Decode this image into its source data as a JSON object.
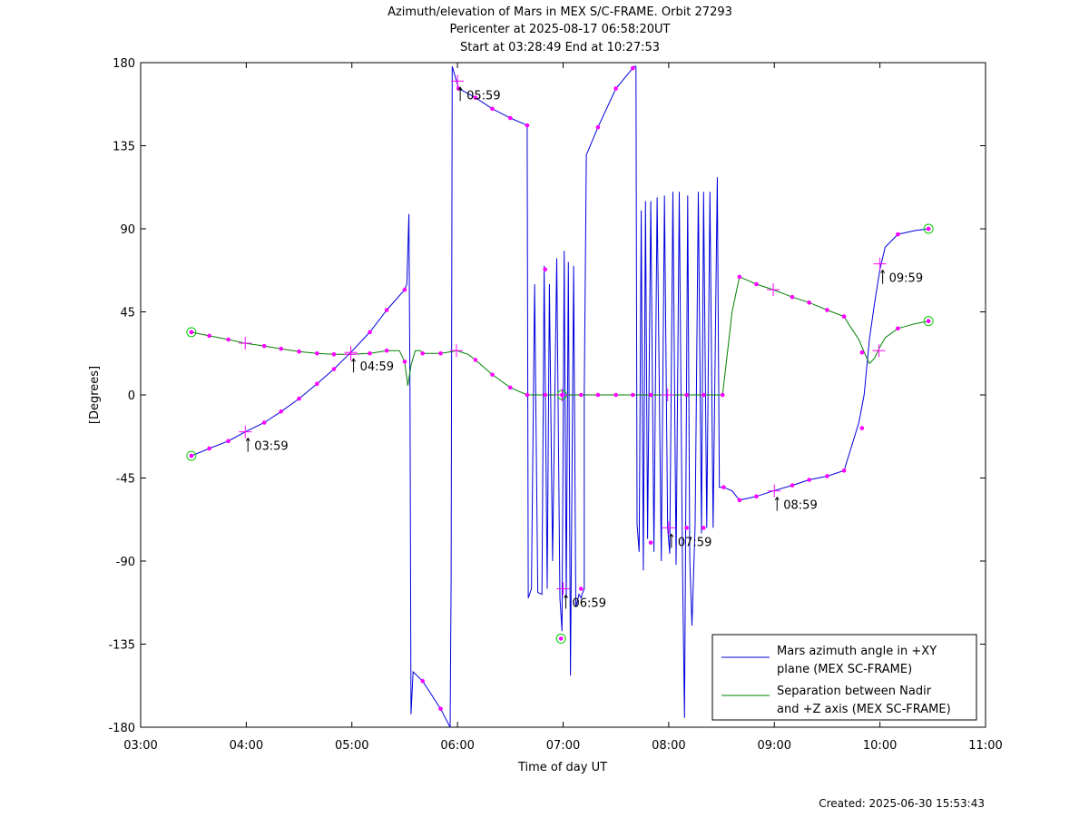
{
  "chart_data": {
    "type": "line",
    "title_lines": [
      "Azimuth/elevation of Mars in MEX S/C-FRAME.  Orbit 27293",
      "Pericenter at 2025-08-17 06:58:20UT",
      "Start at 03:28:49 End at 10:27:53"
    ],
    "xlabel": "Time of day UT",
    "ylabel": "[Degrees]",
    "footer": "Created: 2025-06-30 15:53:43",
    "xlim": [
      3.0,
      11.0
    ],
    "ylim": [
      -180,
      180
    ],
    "xticks": [
      3,
      4,
      5,
      6,
      7,
      8,
      9,
      10,
      11
    ],
    "xtick_labels": [
      "03:00",
      "04:00",
      "05:00",
      "06:00",
      "07:00",
      "08:00",
      "09:00",
      "10:00",
      "11:00"
    ],
    "yticks": [
      180,
      135,
      90,
      45,
      0,
      -45,
      -90,
      -135,
      -180
    ],
    "ytick_labels": [
      "180",
      "135",
      "90",
      "45",
      "0",
      "-45",
      "-90",
      "-135",
      "-180"
    ],
    "grid": false,
    "legend_position": "bottom-right",
    "colors": {
      "azimuth": "#0000dd",
      "separation": "#008000",
      "marker": "#ff00ff",
      "endpoint": "#00cc00"
    },
    "series": [
      {
        "name": "Mars azimuth angle in +XY plane (MEX SC-FRAME)",
        "legend_lines": [
          "Mars azimuth angle in +XY",
          "plane (MEX SC-FRAME)"
        ],
        "points": [
          [
            3.48,
            -33
          ],
          [
            3.65,
            -29
          ],
          [
            3.83,
            -25
          ],
          [
            3.99,
            -20
          ],
          [
            4.17,
            -15
          ],
          [
            4.33,
            -9
          ],
          [
            4.5,
            -2
          ],
          [
            4.67,
            6
          ],
          [
            4.83,
            14
          ],
          [
            4.99,
            23
          ],
          [
            5.17,
            34
          ],
          [
            5.33,
            46
          ],
          [
            5.5,
            57
          ],
          [
            5.52,
            60
          ],
          [
            5.54,
            98
          ],
          [
            5.55,
            0
          ],
          [
            5.56,
            -173
          ],
          [
            5.58,
            -150
          ],
          [
            5.67,
            -155
          ],
          [
            5.84,
            -170
          ],
          [
            5.93,
            -180
          ],
          [
            5.94,
            -100
          ],
          [
            5.95,
            178
          ],
          [
            5.99,
            170
          ],
          [
            6.01,
            166
          ],
          [
            6.17,
            161
          ],
          [
            6.33,
            155
          ],
          [
            6.5,
            150
          ],
          [
            6.66,
            146
          ],
          [
            6.67,
            -110
          ],
          [
            6.7,
            -105
          ],
          [
            6.73,
            60
          ],
          [
            6.76,
            -107
          ],
          [
            6.8,
            -108
          ],
          [
            6.82,
            70
          ],
          [
            6.85,
            -105
          ],
          [
            6.87,
            60
          ],
          [
            6.9,
            -90
          ],
          [
            6.94,
            74
          ],
          [
            6.97,
            -110
          ],
          [
            6.99,
            -128
          ],
          [
            7.01,
            78
          ],
          [
            7.03,
            -110
          ],
          [
            7.05,
            72
          ],
          [
            7.07,
            -152
          ],
          [
            7.1,
            70
          ],
          [
            7.12,
            -115
          ],
          [
            7.15,
            -108
          ],
          [
            7.17,
            -110
          ],
          [
            7.18,
            -108
          ],
          [
            7.2,
            -105
          ],
          [
            7.2,
            0
          ],
          [
            7.22,
            130
          ],
          [
            7.33,
            145
          ],
          [
            7.5,
            166
          ],
          [
            7.66,
            177
          ],
          [
            7.67,
            178
          ],
          [
            7.69,
            178
          ],
          [
            7.7,
            -70
          ],
          [
            7.72,
            -85
          ],
          [
            7.74,
            100
          ],
          [
            7.76,
            -95
          ],
          [
            7.78,
            105
          ],
          [
            7.8,
            -78
          ],
          [
            7.83,
            105
          ],
          [
            7.86,
            -85
          ],
          [
            7.89,
            107
          ],
          [
            7.93,
            -90
          ],
          [
            7.96,
            108
          ],
          [
            7.99,
            -72
          ],
          [
            8.01,
            -86
          ],
          [
            8.04,
            110
          ],
          [
            8.07,
            -92
          ],
          [
            8.1,
            110
          ],
          [
            8.13,
            -90
          ],
          [
            8.15,
            -175
          ],
          [
            8.18,
            108
          ],
          [
            8.2,
            -90
          ],
          [
            8.22,
            -125
          ],
          [
            8.25,
            -70
          ],
          [
            8.28,
            110
          ],
          [
            8.31,
            -75
          ],
          [
            8.33,
            110
          ],
          [
            8.36,
            -72
          ],
          [
            8.39,
            110
          ],
          [
            8.42,
            -72
          ],
          [
            8.46,
            118
          ],
          [
            8.48,
            -50
          ],
          [
            8.52,
            -50
          ],
          [
            8.6,
            -52
          ],
          [
            8.67,
            -57
          ],
          [
            8.83,
            -55
          ],
          [
            8.99,
            -52
          ],
          [
            9.17,
            -49
          ],
          [
            9.33,
            -46
          ],
          [
            9.5,
            -44
          ],
          [
            9.66,
            -41
          ],
          [
            9.72,
            -30
          ],
          [
            9.8,
            -15
          ],
          [
            9.85,
            0
          ],
          [
            9.9,
            30
          ],
          [
            9.95,
            50
          ],
          [
            10.0,
            68
          ],
          [
            10.05,
            80
          ],
          [
            10.17,
            87
          ],
          [
            10.33,
            89
          ],
          [
            10.46,
            90
          ]
        ]
      },
      {
        "name": "Separation between Nadir and +Z axis (MEX SC-FRAME)",
        "legend_lines": [
          "Separation between Nadir",
          "and +Z axis (MEX SC-FRAME)"
        ],
        "points": [
          [
            3.48,
            34
          ],
          [
            3.65,
            32
          ],
          [
            3.83,
            30
          ],
          [
            3.99,
            28
          ],
          [
            4.17,
            26.5
          ],
          [
            4.33,
            25
          ],
          [
            4.5,
            23.5
          ],
          [
            4.67,
            22.5
          ],
          [
            4.83,
            22
          ],
          [
            4.99,
            22
          ],
          [
            5.17,
            22.5
          ],
          [
            5.33,
            24
          ],
          [
            5.45,
            24
          ],
          [
            5.5,
            18
          ],
          [
            5.53,
            5
          ],
          [
            5.56,
            16
          ],
          [
            5.6,
            24
          ],
          [
            5.65,
            24
          ],
          [
            5.67,
            22.5
          ],
          [
            5.84,
            22.5
          ],
          [
            5.95,
            23.5
          ],
          [
            5.99,
            24
          ],
          [
            6.1,
            22
          ],
          [
            6.17,
            19
          ],
          [
            6.33,
            11
          ],
          [
            6.5,
            4
          ],
          [
            6.66,
            0
          ],
          [
            6.83,
            0
          ],
          [
            6.99,
            0
          ],
          [
            7.17,
            0
          ],
          [
            7.33,
            0
          ],
          [
            7.5,
            0
          ],
          [
            7.66,
            0
          ],
          [
            7.83,
            0
          ],
          [
            7.99,
            0
          ],
          [
            8.17,
            0
          ],
          [
            8.33,
            0
          ],
          [
            8.51,
            0
          ],
          [
            8.55,
            20
          ],
          [
            8.6,
            45
          ],
          [
            8.67,
            64
          ],
          [
            8.75,
            62
          ],
          [
            8.83,
            60
          ],
          [
            8.99,
            57
          ],
          [
            9.17,
            53
          ],
          [
            9.33,
            50
          ],
          [
            9.5,
            46
          ],
          [
            9.66,
            42.5
          ],
          [
            9.72,
            37
          ],
          [
            9.8,
            30
          ],
          [
            9.86,
            22
          ],
          [
            9.9,
            17
          ],
          [
            9.95,
            20
          ],
          [
            9.99,
            25
          ],
          [
            10.05,
            31
          ],
          [
            10.17,
            36
          ],
          [
            10.33,
            38.5
          ],
          [
            10.46,
            40
          ]
        ]
      }
    ],
    "markers": {
      "azimuth": [
        [
          3.48,
          -33
        ],
        [
          3.65,
          -29
        ],
        [
          3.83,
          -25
        ],
        [
          4.17,
          -15
        ],
        [
          4.33,
          -9
        ],
        [
          4.5,
          -2
        ],
        [
          4.67,
          6
        ],
        [
          4.83,
          14
        ],
        [
          5.17,
          34
        ],
        [
          5.33,
          46
        ],
        [
          5.5,
          57
        ],
        [
          5.67,
          -155
        ],
        [
          5.84,
          -170
        ],
        [
          6.01,
          166
        ],
        [
          6.17,
          161
        ],
        [
          6.33,
          155
        ],
        [
          6.5,
          150
        ],
        [
          6.66,
          146
        ],
        [
          6.83,
          68
        ],
        [
          7.17,
          -105
        ],
        [
          7.33,
          145
        ],
        [
          7.5,
          166
        ],
        [
          7.66,
          177
        ],
        [
          7.83,
          -80
        ],
        [
          8.17,
          -72
        ],
        [
          8.33,
          -72
        ],
        [
          8.52,
          -50
        ],
        [
          8.67,
          -57
        ],
        [
          8.83,
          -55
        ],
        [
          9.17,
          -49
        ],
        [
          9.33,
          -46
        ],
        [
          9.5,
          -44
        ],
        [
          9.66,
          -41
        ],
        [
          9.83,
          -18
        ],
        [
          10.17,
          87
        ],
        [
          10.46,
          90
        ]
      ],
      "separation": [
        [
          3.48,
          34
        ],
        [
          3.65,
          32
        ],
        [
          3.83,
          30
        ],
        [
          4.17,
          26.5
        ],
        [
          4.33,
          25
        ],
        [
          4.5,
          23.5
        ],
        [
          4.67,
          22.5
        ],
        [
          4.83,
          22
        ],
        [
          5.17,
          22.5
        ],
        [
          5.33,
          24
        ],
        [
          5.5,
          18
        ],
        [
          5.67,
          22.5
        ],
        [
          5.84,
          22.5
        ],
        [
          6.17,
          19
        ],
        [
          6.33,
          11
        ],
        [
          6.5,
          4
        ],
        [
          6.66,
          0
        ],
        [
          6.83,
          0
        ],
        [
          7.17,
          0
        ],
        [
          7.33,
          0
        ],
        [
          7.5,
          0
        ],
        [
          7.66,
          0
        ],
        [
          7.83,
          0
        ],
        [
          8.17,
          0
        ],
        [
          8.33,
          0
        ],
        [
          8.51,
          0
        ],
        [
          8.67,
          64
        ],
        [
          8.83,
          60
        ],
        [
          9.17,
          53
        ],
        [
          9.33,
          50
        ],
        [
          9.5,
          46
        ],
        [
          9.66,
          42.5
        ],
        [
          9.83,
          23
        ],
        [
          10.17,
          36
        ],
        [
          10.46,
          40
        ]
      ]
    },
    "hour_ticks": {
      "azimuth": [
        {
          "x": 3.99,
          "y": -20,
          "label": "03:59"
        },
        {
          "x": 4.99,
          "y": 23,
          "label": "04:59"
        },
        {
          "x": 6.0,
          "y": 170,
          "label": "05:59"
        },
        {
          "x": 7.0,
          "y": -105,
          "label": "06:59"
        },
        {
          "x": 8.0,
          "y": -72,
          "label": "07:59"
        },
        {
          "x": 9.0,
          "y": -52,
          "label": "08:59"
        },
        {
          "x": 10.0,
          "y": 71,
          "label": "09:59"
        }
      ],
      "separation": [
        {
          "x": 3.99,
          "y": 28
        },
        {
          "x": 4.99,
          "y": 22
        },
        {
          "x": 5.99,
          "y": 24
        },
        {
          "x": 6.99,
          "y": 0
        },
        {
          "x": 7.99,
          "y": 0
        },
        {
          "x": 8.99,
          "y": 57
        },
        {
          "x": 9.99,
          "y": 24
        }
      ]
    },
    "circled_points": [
      [
        3.48,
        -33
      ],
      [
        3.48,
        34
      ],
      [
        6.98,
        -132
      ],
      [
        6.99,
        0
      ],
      [
        10.46,
        90
      ],
      [
        10.46,
        40
      ]
    ]
  }
}
